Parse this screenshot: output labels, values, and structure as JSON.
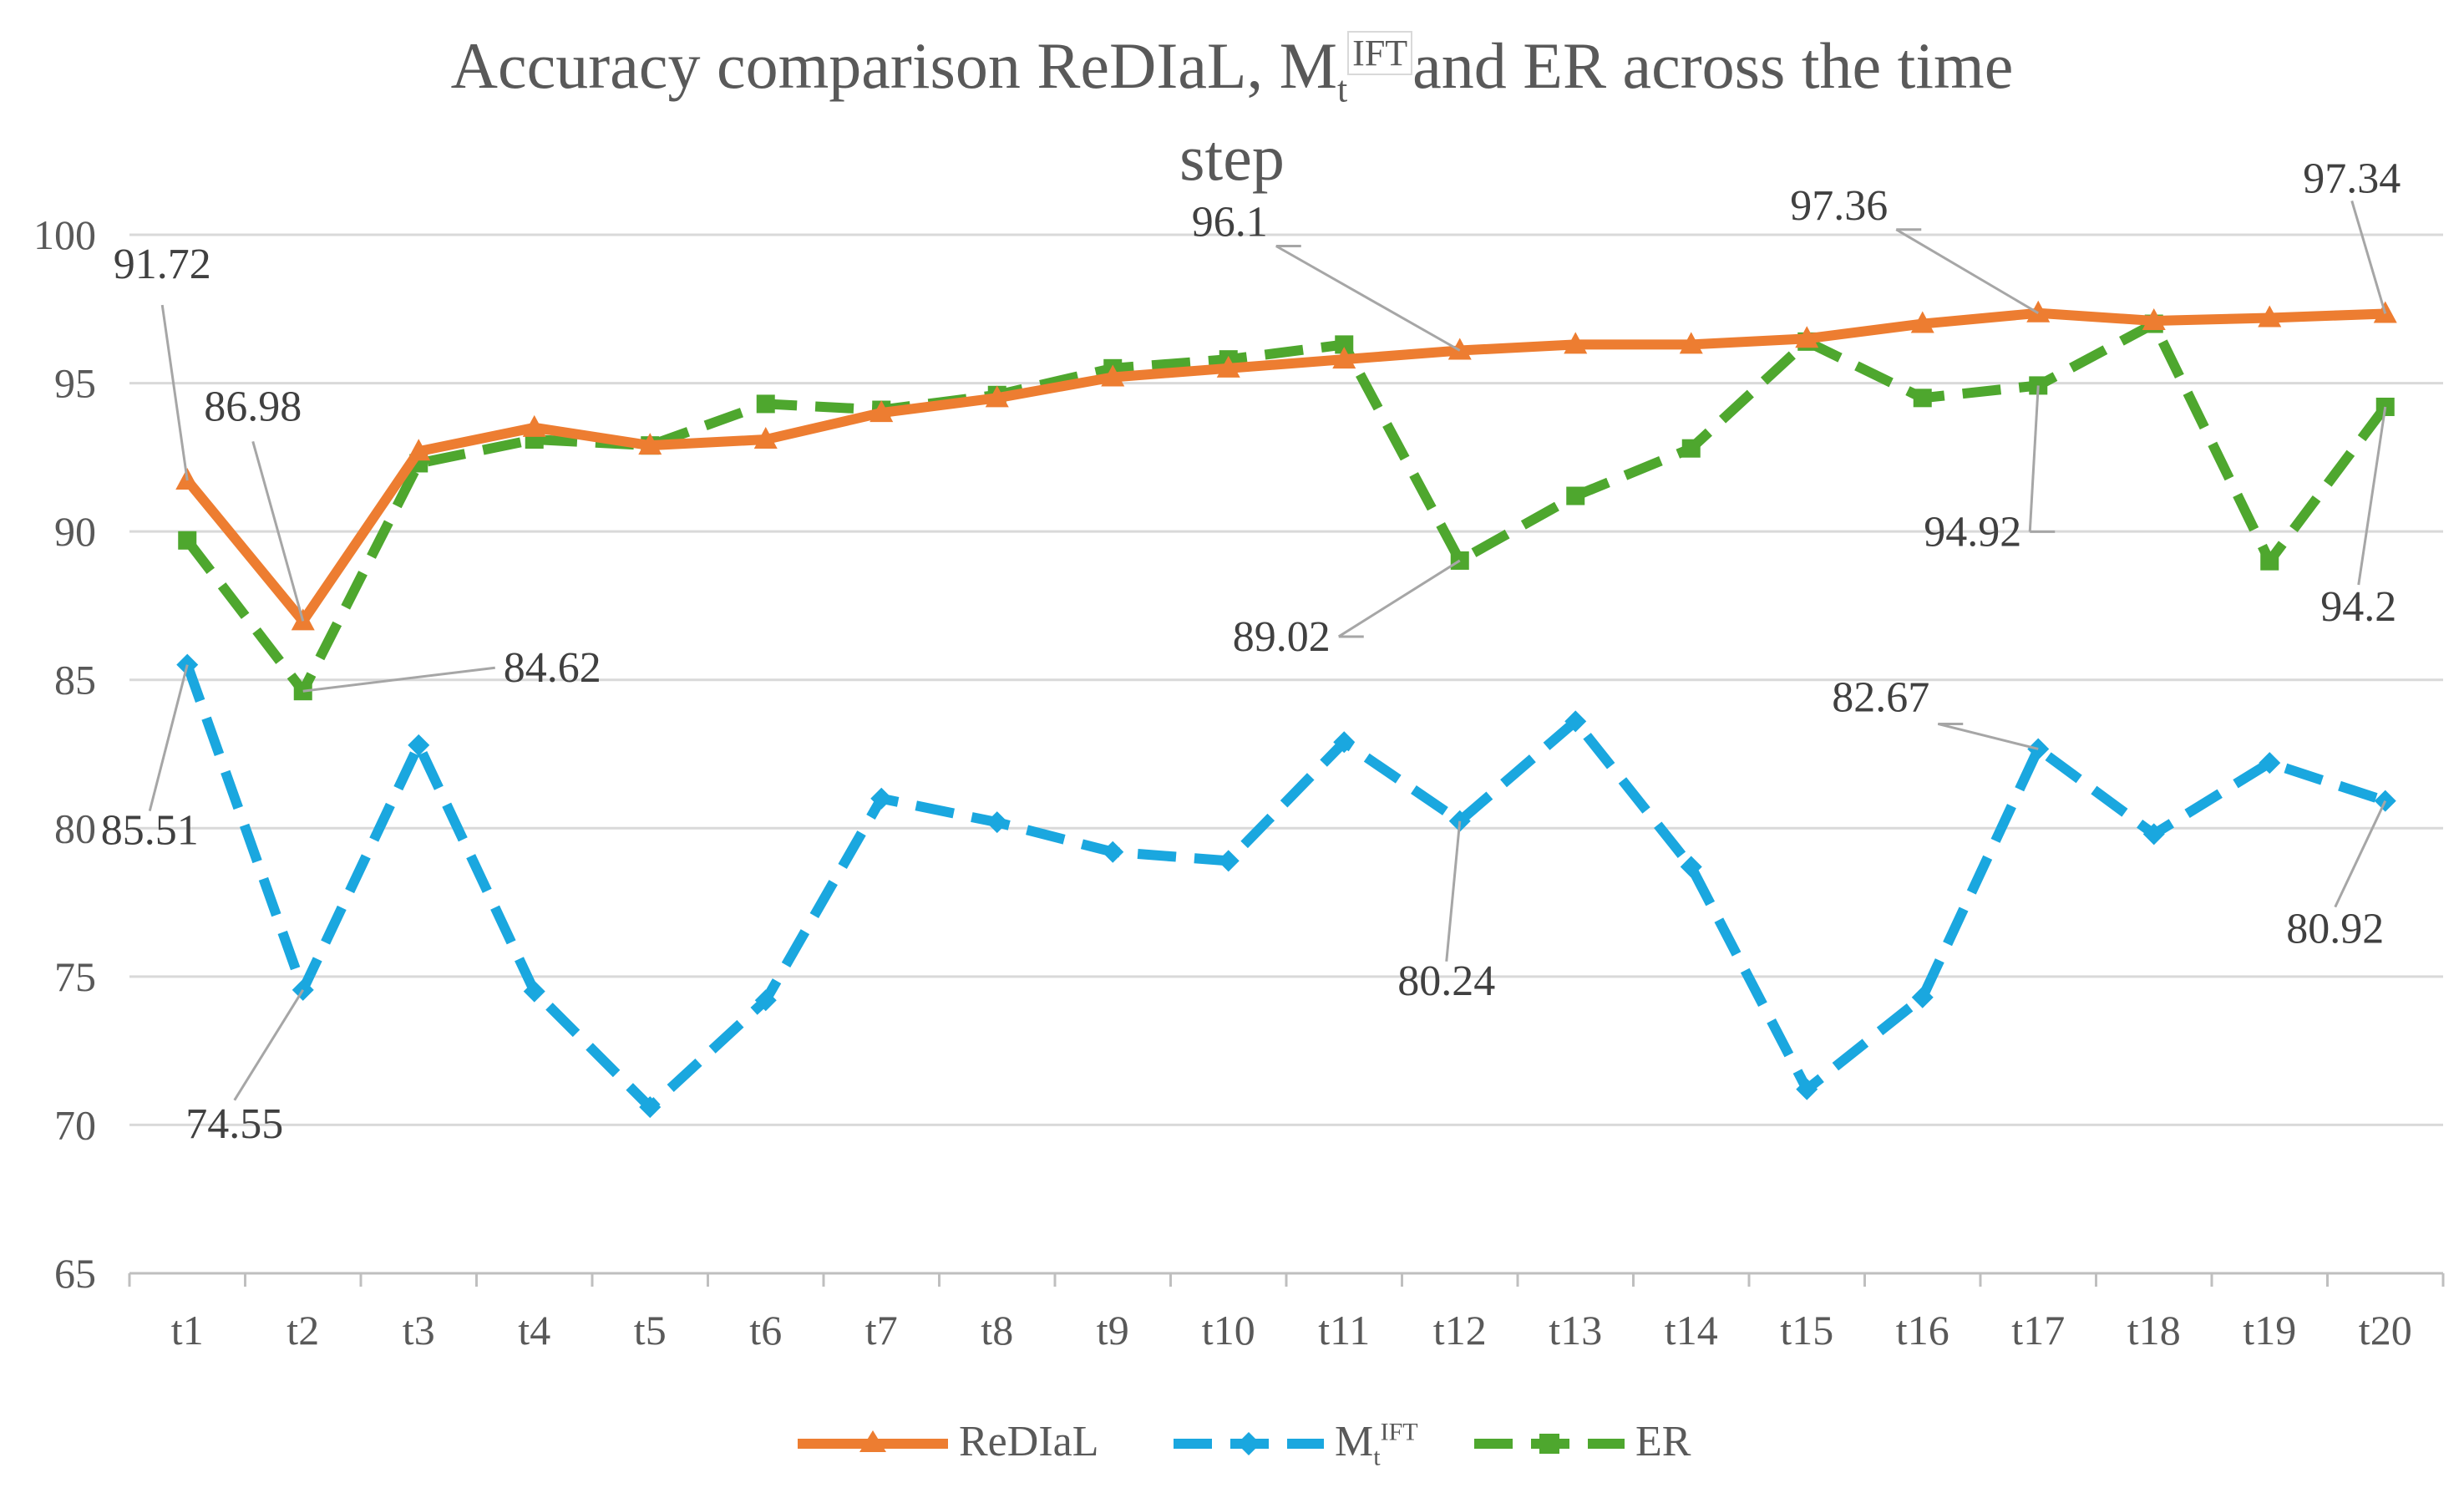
{
  "chart_data": {
    "type": "line",
    "title": "Accuracy comparison ReDIaL, Mt IFT and ER across the time step",
    "title_parts": {
      "line1_prefix": "Accuracy comparison ReDIaL, M",
      "line1_sub": "t",
      "line1_sup": "IFT",
      "line1_suffix": "and ER across the time",
      "line2": "step"
    },
    "categories": [
      "t1",
      "t2",
      "t3",
      "t4",
      "t5",
      "t6",
      "t7",
      "t8",
      "t9",
      "t10",
      "t11",
      "t12",
      "t13",
      "t14",
      "t15",
      "t16",
      "t17",
      "t18",
      "t19",
      "t20"
    ],
    "ylim": [
      65,
      100
    ],
    "yticks": [
      65,
      70,
      75,
      80,
      85,
      90,
      95,
      100
    ],
    "grid": true,
    "legend_position": "bottom",
    "series": [
      {
        "name": "ReDIaL",
        "legend_label": "ReDIaL",
        "color": "#ED7D31",
        "dash": "solid",
        "marker": "triangle",
        "values": [
          91.72,
          86.98,
          92.7,
          93.5,
          92.9,
          93.1,
          94.0,
          94.5,
          95.2,
          95.5,
          95.8,
          96.1,
          96.3,
          96.3,
          96.5,
          97.0,
          97.36,
          97.1,
          97.2,
          97.34
        ]
      },
      {
        "name": "Mt IFT",
        "legend_label": "M",
        "legend_sub": "t",
        "legend_sup": "IFT",
        "color": "#1AA7DF",
        "dash": "dash",
        "marker": "diamond",
        "values": [
          85.51,
          74.55,
          82.8,
          74.5,
          70.6,
          74.2,
          81.0,
          80.2,
          79.2,
          78.9,
          82.9,
          80.24,
          83.6,
          78.7,
          71.2,
          74.3,
          82.67,
          79.8,
          82.2,
          80.92
        ]
      },
      {
        "name": "ER",
        "legend_label": "ER",
        "color": "#4EA72E",
        "dash": "dash",
        "marker": "square",
        "values": [
          89.7,
          84.62,
          92.3,
          93.1,
          92.9,
          94.3,
          94.1,
          94.6,
          95.5,
          95.8,
          96.3,
          89.02,
          91.2,
          92.8,
          96.4,
          94.5,
          94.92,
          97.0,
          89.0,
          94.2
        ]
      }
    ],
    "data_labels": [
      {
        "series": 0,
        "index": 0,
        "text": "91.72"
      },
      {
        "series": 0,
        "index": 1,
        "text": "86.98"
      },
      {
        "series": 0,
        "index": 11,
        "text": "96.1"
      },
      {
        "series": 0,
        "index": 16,
        "text": "97.36"
      },
      {
        "series": 0,
        "index": 19,
        "text": "97.34"
      },
      {
        "series": 1,
        "index": 0,
        "text": "85.51"
      },
      {
        "series": 1,
        "index": 1,
        "text": "74.55"
      },
      {
        "series": 1,
        "index": 11,
        "text": "80.24"
      },
      {
        "series": 1,
        "index": 16,
        "text": "82.67"
      },
      {
        "series": 1,
        "index": 19,
        "text": "80.92"
      },
      {
        "series": 2,
        "index": 1,
        "text": "84.62"
      },
      {
        "series": 2,
        "index": 11,
        "text": "89.02"
      },
      {
        "series": 2,
        "index": 16,
        "text": "94.92"
      },
      {
        "series": 2,
        "index": 19,
        "text": "94.2"
      }
    ]
  }
}
